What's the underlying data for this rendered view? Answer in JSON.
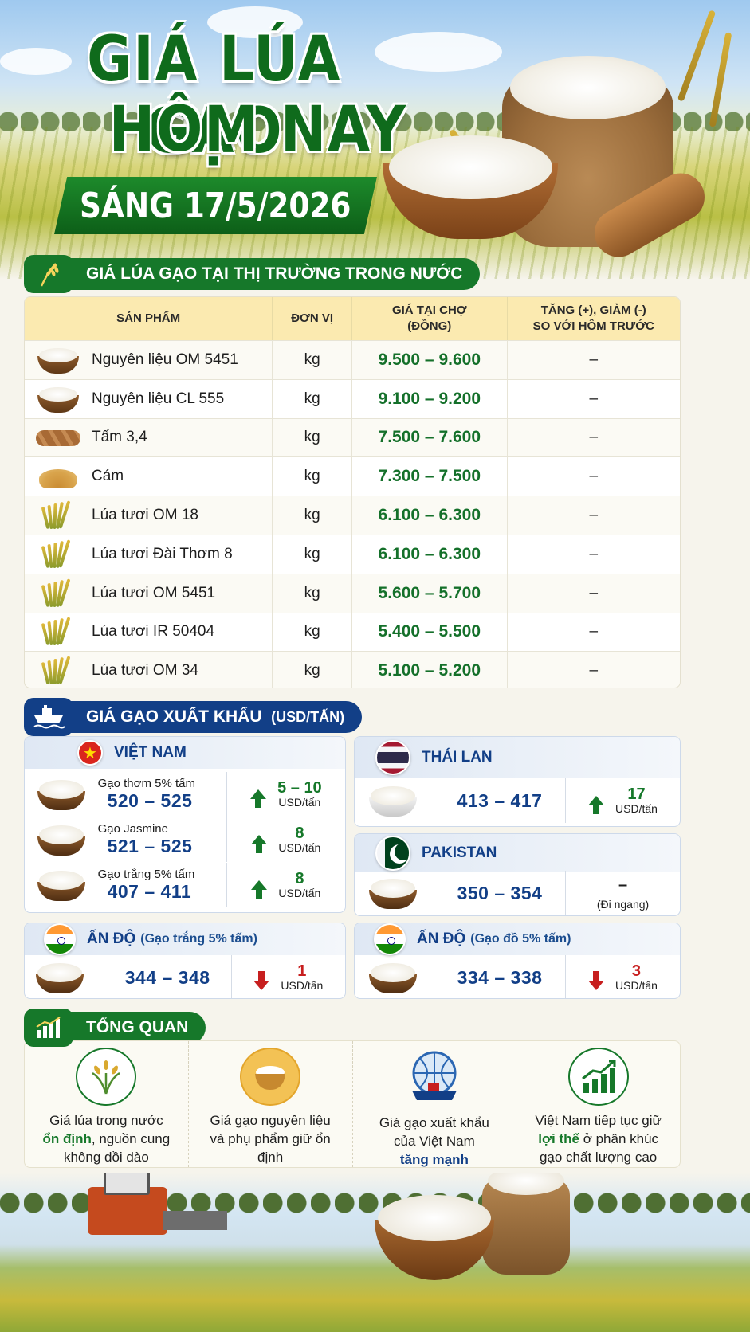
{
  "hero": {
    "title_line1": "GIÁ LÚA GẠO",
    "title_line2": "HÔM NAY",
    "date": "SÁNG 17/5/2026"
  },
  "domestic": {
    "header": "GIÁ LÚA GẠO TẠI THỊ TRƯỜNG TRONG NƯỚC",
    "columns": [
      "SẢN PHẨM",
      "ĐƠN VỊ",
      "GIÁ TẠI CHỢ\n(ĐỒNG)",
      "TĂNG (+), GIẢM (-)\nSO VỚI HÔM TRƯỚC"
    ],
    "rows": [
      {
        "product": "Nguyên liệu OM 5451",
        "unit": "kg",
        "price": "9.500 – 9.600",
        "change": "–",
        "icon": "rice-bowl"
      },
      {
        "product": "Nguyên liệu CL 555",
        "unit": "kg",
        "price": "9.100 – 9.200",
        "change": "–",
        "icon": "rice-bowl"
      },
      {
        "product": "Tấm 3,4",
        "unit": "kg",
        "price": "7.500 – 7.600",
        "change": "–",
        "icon": "broken-rice"
      },
      {
        "product": "Cám",
        "unit": "kg",
        "price": "7.300 – 7.500",
        "change": "–",
        "icon": "bran"
      },
      {
        "product": "Lúa tươi OM 18",
        "unit": "kg",
        "price": "6.100 – 6.300",
        "change": "–",
        "icon": "rice-stalk"
      },
      {
        "product": "Lúa tươi Đài Thơm 8",
        "unit": "kg",
        "price": "6.100 – 6.300",
        "change": "–",
        "icon": "rice-stalk"
      },
      {
        "product": "Lúa tươi OM 5451",
        "unit": "kg",
        "price": "5.600 – 5.700",
        "change": "–",
        "icon": "rice-stalk"
      },
      {
        "product": "Lúa tươi IR 50404",
        "unit": "kg",
        "price": "5.400 – 5.500",
        "change": "–",
        "icon": "rice-stalk"
      },
      {
        "product": "Lúa tươi OM 34",
        "unit": "kg",
        "price": "5.100 – 5.200",
        "change": "–",
        "icon": "rice-stalk"
      }
    ]
  },
  "export": {
    "header": "GIÁ GẠO XUẤT KHẨU",
    "header_unit": "(USD/TẤN)",
    "vietnam": {
      "country": "VIỆT NAM",
      "items": [
        {
          "name": "Gạo thơm 5% tấm",
          "price": "520 – 525",
          "change": "5 – 10",
          "unit": "USD/tấn",
          "trend": "up"
        },
        {
          "name": "Gạo Jasmine",
          "price": "521 – 525",
          "change": "8",
          "unit": "USD/tấn",
          "trend": "up"
        },
        {
          "name": "Gạo trắng 5% tấm",
          "price": "407 – 411",
          "change": "8",
          "unit": "USD/tấn",
          "trend": "up"
        }
      ]
    },
    "thailand": {
      "country": "THÁI LAN",
      "price": "413 – 417",
      "change": "17",
      "unit": "USD/tấn",
      "trend": "up"
    },
    "pakistan": {
      "country": "PAKISTAN",
      "price": "350 – 354",
      "change": "–",
      "note": "(Đi ngang)",
      "trend": "flat"
    },
    "india_white": {
      "country": "ẤN ĐỘ",
      "sub": "(Gạo trắng 5% tấm)",
      "price": "344 – 348",
      "change": "1",
      "unit": "USD/tấn",
      "trend": "down"
    },
    "india_red": {
      "country": "ẤN ĐỘ",
      "sub": "(Gạo đồ 5% tấm)",
      "price": "334 – 338",
      "change": "3",
      "unit": "USD/tấn",
      "trend": "down"
    }
  },
  "overview": {
    "header": "TỔNG QUAN",
    "items": [
      {
        "pre": "Giá lúa trong nước",
        "highlight": "ổn định",
        "post": ", nguồn cung không dồi dào",
        "icon": "rice-plant-icon"
      },
      {
        "pre": "Giá gạo nguyên liệu và phụ phẩm giữ ổn định",
        "highlight": "",
        "post": "",
        "icon": "rice-bowl-icon"
      },
      {
        "pre": "Giá gạo xuất khẩu của Việt Nam",
        "highlight": "tăng mạnh",
        "post": "",
        "icon": "globe-ship-icon"
      },
      {
        "pre": "Việt Nam tiếp tục giữ",
        "highlight": "lợi thế",
        "post": " ở phân khúc gạo chất lượng cao",
        "icon": "growth-chart-icon"
      }
    ]
  },
  "colors": {
    "green": "#16782a",
    "blue": "#123f87",
    "red": "#c71f1f",
    "header_yellow": "#fbeab0"
  }
}
